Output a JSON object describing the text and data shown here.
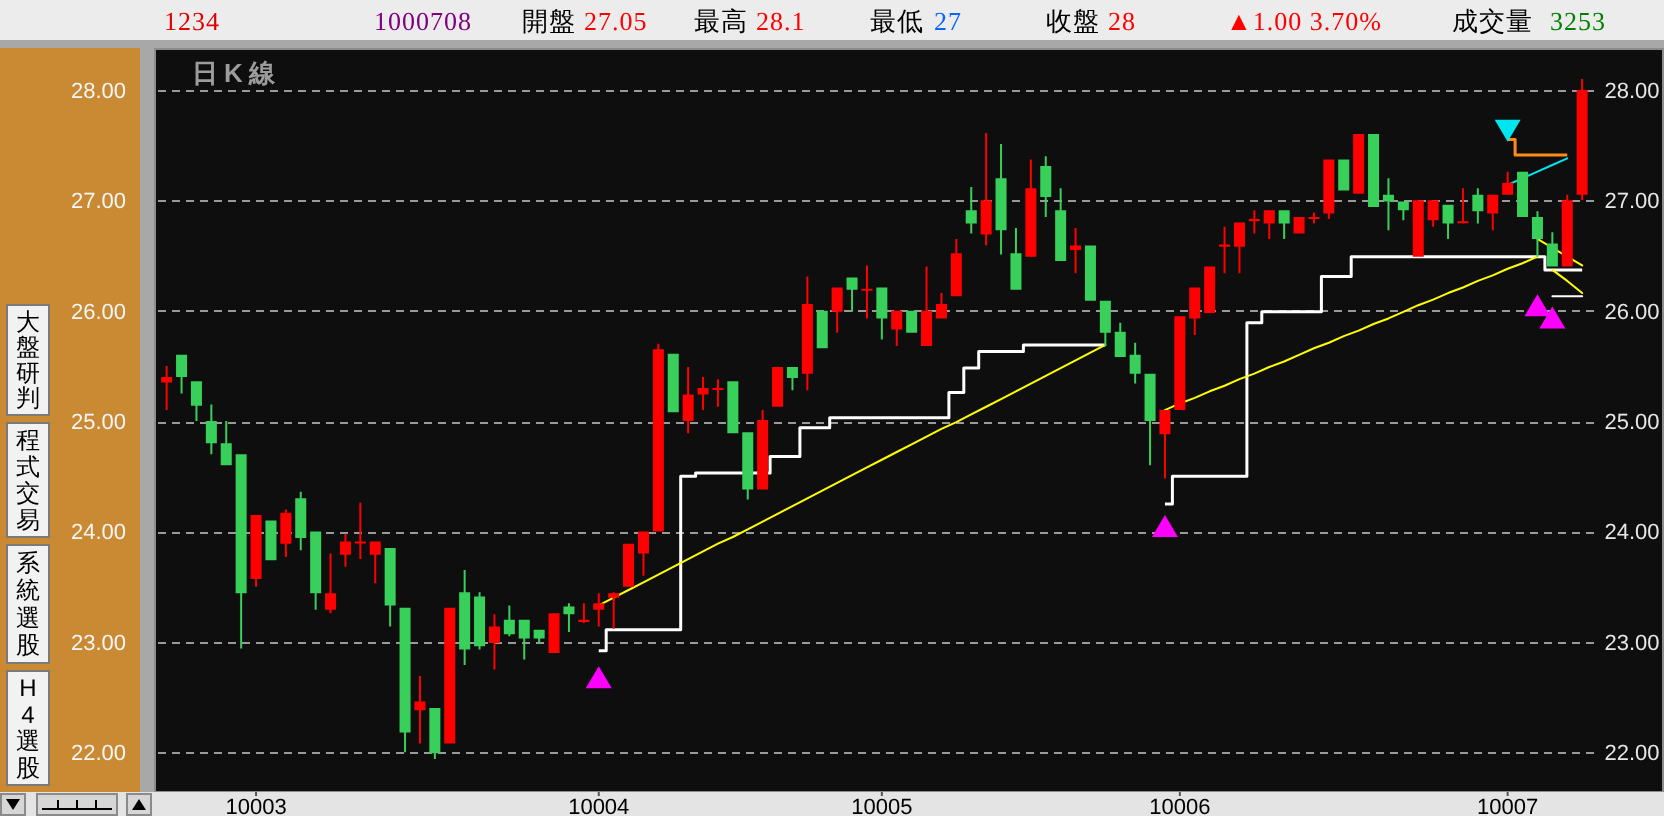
{
  "chart_data": {
    "type": "candlestick",
    "title": "日K線",
    "categories": [
      null,
      null,
      null,
      null,
      null,
      null,
      "10003",
      null,
      null,
      null,
      null,
      null,
      null,
      null,
      null,
      null,
      null,
      null,
      null,
      null,
      null,
      null,
      null,
      null,
      null,
      null,
      null,
      null,
      null,
      "10004",
      null,
      null,
      null,
      null,
      null,
      null,
      null,
      null,
      null,
      null,
      null,
      null,
      null,
      null,
      null,
      null,
      null,
      null,
      "10005",
      null,
      null,
      null,
      null,
      null,
      null,
      null,
      null,
      null,
      null,
      null,
      null,
      null,
      null,
      null,
      null,
      null,
      null,
      null,
      "10006",
      null,
      null,
      null,
      null,
      null,
      null,
      null,
      null,
      null,
      null,
      null,
      null,
      null,
      null,
      null,
      null,
      null,
      null,
      null,
      null,
      null,
      "10007",
      null,
      null,
      null,
      null,
      null
    ],
    "ohlc": [
      [
        25.35,
        25.5,
        25.1,
        25.4
      ],
      [
        25.6,
        25.6,
        25.25,
        25.4
      ],
      [
        25.36,
        25.36,
        25.0,
        25.14
      ],
      [
        25.0,
        25.15,
        24.7,
        24.8
      ],
      [
        24.8,
        25.0,
        24.6,
        24.6
      ],
      [
        24.7,
        24.7,
        22.94,
        23.44
      ],
      [
        23.57,
        24.15,
        23.5,
        24.15
      ],
      [
        24.1,
        24.1,
        23.74,
        23.74
      ],
      [
        23.89,
        24.2,
        23.77,
        24.17
      ],
      [
        24.3,
        24.36,
        23.83,
        23.94
      ],
      [
        24.0,
        24.0,
        23.29,
        23.44
      ],
      [
        23.29,
        23.8,
        23.26,
        23.44
      ],
      [
        23.79,
        23.98,
        23.68,
        23.91
      ],
      [
        23.9,
        24.26,
        23.75,
        23.91
      ],
      [
        23.79,
        23.91,
        23.53,
        23.91
      ],
      [
        23.85,
        23.85,
        23.14,
        23.33
      ],
      [
        23.31,
        23.31,
        22.0,
        22.18
      ],
      [
        22.38,
        22.69,
        22.08,
        22.46
      ],
      [
        22.4,
        22.4,
        21.94,
        21.99
      ],
      [
        22.08,
        23.31,
        22.08,
        23.31
      ],
      [
        23.45,
        23.65,
        22.79,
        22.93
      ],
      [
        23.41,
        23.45,
        22.93,
        22.96
      ],
      [
        22.99,
        23.25,
        22.75,
        23.14
      ],
      [
        23.2,
        23.33,
        23.05,
        23.07
      ],
      [
        23.2,
        23.2,
        22.84,
        23.03
      ],
      [
        23.11,
        23.11,
        22.99,
        23.03
      ],
      [
        22.9,
        23.26,
        22.9,
        23.26
      ],
      [
        23.32,
        23.35,
        23.09,
        23.25
      ],
      [
        23.18,
        23.35,
        23.17,
        23.2
      ],
      [
        23.29,
        23.44,
        23.14,
        23.35
      ],
      [
        23.4,
        23.45,
        23.12,
        23.44
      ],
      [
        23.5,
        23.89,
        23.5,
        23.89
      ],
      [
        23.8,
        24.0,
        23.6,
        24.0
      ],
      [
        24.0,
        25.7,
        24.0,
        25.65
      ],
      [
        25.61,
        25.61,
        25.08,
        25.08
      ],
      [
        25.0,
        25.49,
        24.89,
        25.24
      ],
      [
        25.24,
        25.4,
        25.1,
        25.3
      ],
      [
        25.29,
        25.38,
        25.13,
        25.3
      ],
      [
        25.36,
        25.36,
        24.89,
        24.89
      ],
      [
        24.9,
        24.9,
        24.29,
        24.38
      ],
      [
        24.38,
        25.1,
        24.38,
        25.01
      ],
      [
        25.13,
        25.49,
        25.13,
        25.49
      ],
      [
        25.49,
        25.49,
        25.28,
        25.39
      ],
      [
        25.43,
        26.31,
        25.28,
        26.06
      ],
      [
        26.0,
        26.0,
        25.66,
        25.66
      ],
      [
        25.99,
        26.21,
        25.8,
        26.21
      ],
      [
        26.3,
        26.3,
        25.99,
        26.19
      ],
      [
        26.18,
        26.41,
        25.93,
        26.2
      ],
      [
        26.21,
        26.21,
        25.74,
        25.93
      ],
      [
        25.83,
        26.0,
        25.68,
        26.0
      ],
      [
        26.0,
        26.0,
        25.8,
        25.8
      ],
      [
        25.68,
        26.4,
        25.68,
        26.0
      ],
      [
        25.93,
        26.16,
        25.93,
        26.06
      ],
      [
        26.13,
        26.65,
        26.13,
        26.52
      ],
      [
        26.91,
        27.12,
        26.7,
        26.79
      ],
      [
        26.69,
        27.61,
        26.59,
        27.0
      ],
      [
        27.2,
        27.51,
        26.51,
        26.73
      ],
      [
        26.52,
        26.75,
        26.19,
        26.19
      ],
      [
        26.49,
        27.37,
        26.49,
        27.11
      ],
      [
        27.31,
        27.4,
        26.85,
        27.03
      ],
      [
        26.91,
        27.11,
        26.45,
        26.45
      ],
      [
        26.55,
        26.75,
        26.34,
        26.59
      ],
      [
        26.59,
        26.59,
        26.09,
        26.09
      ],
      [
        26.09,
        26.09,
        25.68,
        25.8
      ],
      [
        25.81,
        25.89,
        25.58,
        25.58
      ],
      [
        25.6,
        25.71,
        25.34,
        25.43
      ],
      [
        25.43,
        25.43,
        24.6,
        25.0
      ],
      [
        24.88,
        25.1,
        24.48,
        25.1
      ],
      [
        25.1,
        25.95,
        25.1,
        25.95
      ],
      [
        25.93,
        26.21,
        25.78,
        26.21
      ],
      [
        25.98,
        26.4,
        25.98,
        26.4
      ],
      [
        26.58,
        26.76,
        26.34,
        26.6
      ],
      [
        26.58,
        26.8,
        26.34,
        26.8
      ],
      [
        26.81,
        26.91,
        26.7,
        26.83
      ],
      [
        26.79,
        26.91,
        26.65,
        26.91
      ],
      [
        26.91,
        26.91,
        26.65,
        26.79
      ],
      [
        26.7,
        26.85,
        26.7,
        26.85
      ],
      [
        26.84,
        26.89,
        26.79,
        26.85
      ],
      [
        26.88,
        27.37,
        26.83,
        27.37
      ],
      [
        27.37,
        27.37,
        27.09,
        27.09
      ],
      [
        27.06,
        27.6,
        27.06,
        27.6
      ],
      [
        27.6,
        27.6,
        26.94,
        26.94
      ],
      [
        27.05,
        27.2,
        26.73,
        26.99
      ],
      [
        26.99,
        26.99,
        26.82,
        26.91
      ],
      [
        26.49,
        27.0,
        26.49,
        27.0
      ],
      [
        26.82,
        27.0,
        26.76,
        27.0
      ],
      [
        26.96,
        26.96,
        26.65,
        26.79
      ],
      [
        26.8,
        27.11,
        26.79,
        26.81
      ],
      [
        27.05,
        27.11,
        26.79,
        26.9
      ],
      [
        26.88,
        27.05,
        26.73,
        27.05
      ],
      [
        27.05,
        27.26,
        27.05,
        27.16
      ],
      [
        27.26,
        27.26,
        26.85,
        26.85
      ],
      [
        26.85,
        26.9,
        26.49,
        26.65
      ],
      [
        26.61,
        26.71,
        26.4,
        26.4
      ],
      [
        26.4,
        27.05,
        26.4,
        27.0
      ],
      [
        27.05,
        28.1,
        27.0,
        28.0
      ]
    ],
    "colors": [
      "#ff0000",
      "#38cf5a",
      "#38cf5a",
      "#38cf5a",
      "#38cf5a",
      "#38cf5a",
      "#ff0000",
      "#38cf5a",
      "#ff0000",
      "#38cf5a",
      "#38cf5a",
      "#ff0000",
      "#ff0000",
      "#ff0000",
      "#ff0000",
      "#38cf5a",
      "#38cf5a",
      "#ff0000",
      "#38cf5a",
      "#ff0000",
      "#38cf5a",
      "#38cf5a",
      "#ff0000",
      "#38cf5a",
      "#38cf5a",
      "#38cf5a",
      "#ff0000",
      "#38cf5a",
      "#ff0000",
      "#ff0000",
      "#ff0000",
      "#ff0000",
      "#ff0000",
      "#ff0000",
      "#38cf5a",
      "#ff0000",
      "#ff0000",
      "#ff0000",
      "#38cf5a",
      "#38cf5a",
      "#ff0000",
      "#ff0000",
      "#38cf5a",
      "#ff0000",
      "#38cf5a",
      "#ff0000",
      "#38cf5a",
      "#ff0000",
      "#38cf5a",
      "#ff0000",
      "#38cf5a",
      "#ff0000",
      "#ff0000",
      "#ff0000",
      "#38cf5a",
      "#ff0000",
      "#38cf5a",
      "#38cf5a",
      "#ff0000",
      "#38cf5a",
      "#38cf5a",
      "#ff0000",
      "#38cf5a",
      "#38cf5a",
      "#38cf5a",
      "#38cf5a",
      "#38cf5a",
      "#ff0000",
      "#ff0000",
      "#ff0000",
      "#ff0000",
      "#ff0000",
      "#ff0000",
      "#ff0000",
      "#ff0000",
      "#38cf5a",
      "#ff0000",
      "#ff0000",
      "#ff0000",
      "#38cf5a",
      "#ff0000",
      "#38cf5a",
      "#38cf5a",
      "#38cf5a",
      "#ff0000",
      "#ff0000",
      "#38cf5a",
      "#ff0000",
      "#38cf5a",
      "#ff0000",
      "#ff0000",
      "#38cf5a",
      "#38cf5a",
      "#38cf5a",
      "#ff0000",
      "#ff0000"
    ],
    "series": [
      {
        "type": "step",
        "color": "#ffffff",
        "values": [
          null,
          null,
          null,
          null,
          null,
          null,
          null,
          null,
          null,
          null,
          null,
          null,
          null,
          null,
          null,
          null,
          null,
          null,
          null,
          null,
          null,
          null,
          null,
          null,
          null,
          null,
          null,
          null,
          null,
          22.92,
          23.11,
          23.11,
          23.11,
          23.11,
          23.11,
          24.5,
          24.53,
          24.53,
          24.53,
          24.53,
          24.53,
          24.68,
          24.68,
          24.94,
          24.94,
          25.03,
          25.03,
          25.03,
          25.03,
          25.03,
          25.03,
          25.03,
          25.03,
          25.26,
          25.48,
          25.63,
          25.63,
          25.63,
          25.69,
          25.69,
          25.69,
          25.69,
          25.69,
          25.69,
          null,
          null,
          null,
          24.25,
          24.5,
          24.5,
          24.5,
          24.5,
          24.5,
          25.89,
          25.99,
          25.99,
          25.99,
          25.99,
          26.31,
          26.31,
          26.49,
          26.49,
          26.49,
          26.49,
          26.49,
          26.49,
          26.49,
          26.49,
          26.49,
          26.49,
          26.49,
          26.49,
          26.49,
          26.37,
          26.37,
          26.37
        ]
      },
      {
        "type": "line",
        "color": "#ffff00",
        "values": [
          null,
          null,
          null,
          null,
          null,
          null,
          null,
          null,
          null,
          null,
          null,
          null,
          null,
          null,
          null,
          null,
          null,
          null,
          null,
          null,
          null,
          null,
          null,
          null,
          null,
          null,
          null,
          null,
          null,
          23.33,
          23.4,
          23.47,
          23.54,
          23.61,
          23.68,
          23.75,
          23.82,
          23.89,
          23.95,
          24.02,
          24.09,
          24.16,
          24.23,
          24.3,
          24.37,
          24.44,
          24.51,
          24.58,
          24.65,
          24.72,
          24.79,
          24.86,
          24.93,
          24.99,
          25.06,
          25.13,
          25.2,
          25.27,
          25.34,
          25.41,
          25.48,
          25.55,
          25.62,
          25.69,
          null,
          null,
          null,
          25.1,
          25.16,
          25.21,
          25.27,
          25.32,
          25.38,
          25.43,
          25.49,
          25.54,
          25.6,
          25.66,
          25.71,
          25.77,
          25.82,
          25.88,
          25.93,
          25.99,
          26.05,
          26.1,
          26.16,
          26.21,
          26.27,
          26.32,
          26.38,
          26.43,
          26.49,
          null,
          null,
          null
        ]
      },
      {
        "type": "line",
        "color": "#ffff00",
        "values": [
          null,
          null,
          null,
          null,
          null,
          null,
          null,
          null,
          null,
          null,
          null,
          null,
          null,
          null,
          null,
          null,
          null,
          null,
          null,
          null,
          null,
          null,
          null,
          null,
          null,
          null,
          null,
          null,
          null,
          null,
          null,
          null,
          null,
          null,
          null,
          null,
          null,
          null,
          null,
          null,
          null,
          null,
          null,
          null,
          null,
          null,
          null,
          null,
          null,
          null,
          null,
          null,
          null,
          null,
          null,
          null,
          null,
          null,
          null,
          null,
          null,
          null,
          null,
          null,
          null,
          null,
          null,
          null,
          null,
          null,
          null,
          null,
          null,
          null,
          null,
          null,
          null,
          null,
          null,
          null,
          null,
          null,
          null,
          null,
          null,
          null,
          null,
          null,
          null,
          null,
          null,
          null,
          26.65,
          26.57,
          26.49,
          26.41
        ]
      },
      {
        "type": "line",
        "color": "#ffff00",
        "values": [
          null,
          null,
          null,
          null,
          null,
          null,
          null,
          null,
          null,
          null,
          null,
          null,
          null,
          null,
          null,
          null,
          null,
          null,
          null,
          null,
          null,
          null,
          null,
          null,
          null,
          null,
          null,
          null,
          null,
          null,
          null,
          null,
          null,
          null,
          null,
          null,
          null,
          null,
          null,
          null,
          null,
          null,
          null,
          null,
          null,
          null,
          null,
          null,
          null,
          null,
          null,
          null,
          null,
          null,
          null,
          null,
          null,
          null,
          null,
          null,
          null,
          null,
          null,
          null,
          null,
          null,
          null,
          null,
          null,
          null,
          null,
          null,
          null,
          null,
          null,
          null,
          null,
          null,
          null,
          null,
          null,
          null,
          null,
          null,
          null,
          null,
          null,
          null,
          null,
          null,
          null,
          null,
          null,
          26.37,
          26.27,
          26.16
        ]
      },
      {
        "type": "line",
        "color": "#ffffff",
        "values": [
          null,
          null,
          null,
          null,
          null,
          null,
          null,
          null,
          null,
          null,
          null,
          null,
          null,
          null,
          null,
          null,
          null,
          null,
          null,
          null,
          null,
          null,
          null,
          null,
          null,
          null,
          null,
          null,
          null,
          null,
          null,
          null,
          null,
          null,
          null,
          null,
          null,
          null,
          null,
          null,
          null,
          null,
          null,
          null,
          null,
          null,
          null,
          null,
          null,
          null,
          null,
          null,
          null,
          null,
          null,
          null,
          null,
          null,
          null,
          null,
          null,
          null,
          null,
          null,
          null,
          null,
          null,
          null,
          null,
          null,
          null,
          null,
          null,
          null,
          null,
          null,
          null,
          null,
          null,
          null,
          null,
          null,
          null,
          null,
          null,
          null,
          null,
          null,
          null,
          null,
          null,
          null,
          null,
          26.13,
          26.13,
          26.13
        ]
      },
      {
        "type": "line",
        "color": "#00e5ee",
        "values": [
          null,
          null,
          null,
          null,
          null,
          null,
          null,
          null,
          null,
          null,
          null,
          null,
          null,
          null,
          null,
          null,
          null,
          null,
          null,
          null,
          null,
          null,
          null,
          null,
          null,
          null,
          null,
          null,
          null,
          null,
          null,
          null,
          null,
          null,
          null,
          null,
          null,
          null,
          null,
          null,
          null,
          null,
          null,
          null,
          null,
          null,
          null,
          null,
          null,
          null,
          null,
          null,
          null,
          null,
          null,
          null,
          null,
          null,
          null,
          null,
          null,
          null,
          null,
          null,
          null,
          null,
          null,
          null,
          null,
          null,
          null,
          null,
          null,
          null,
          null,
          null,
          null,
          null,
          null,
          null,
          null,
          null,
          null,
          null,
          null,
          null,
          null,
          null,
          null,
          null,
          27.14,
          27.2,
          27.26,
          27.32,
          27.38,
          null
        ]
      },
      {
        "type": "step",
        "color": "#ff8c1a",
        "values": [
          null,
          null,
          null,
          null,
          null,
          null,
          null,
          null,
          null,
          null,
          null,
          null,
          null,
          null,
          null,
          null,
          null,
          null,
          null,
          null,
          null,
          null,
          null,
          null,
          null,
          null,
          null,
          null,
          null,
          null,
          null,
          null,
          null,
          null,
          null,
          null,
          null,
          null,
          null,
          null,
          null,
          null,
          null,
          null,
          null,
          null,
          null,
          null,
          null,
          null,
          null,
          null,
          null,
          null,
          null,
          null,
          null,
          null,
          null,
          null,
          null,
          null,
          null,
          null,
          null,
          null,
          null,
          null,
          null,
          null,
          null,
          null,
          null,
          null,
          null,
          null,
          null,
          null,
          null,
          null,
          null,
          null,
          null,
          null,
          null,
          null,
          null,
          null,
          null,
          null,
          27.55,
          27.41,
          27.41,
          27.41,
          27.41,
          null
        ]
      },
      {
        "type": "scatter",
        "color": "#ff00ff",
        "marker": "triangle",
        "values": [
          null,
          null,
          null,
          null,
          null,
          null,
          null,
          null,
          null,
          null,
          null,
          null,
          null,
          null,
          null,
          null,
          null,
          null,
          null,
          null,
          null,
          null,
          null,
          null,
          null,
          null,
          null,
          null,
          null,
          22.67,
          null,
          null,
          null,
          null,
          null,
          null,
          null,
          null,
          null,
          null,
          null,
          null,
          null,
          null,
          null,
          null,
          null,
          null,
          null,
          null,
          null,
          null,
          null,
          null,
          null,
          null,
          null,
          null,
          null,
          null,
          null,
          null,
          null,
          null,
          null,
          null,
          null,
          24.04,
          null,
          null,
          null,
          null,
          null,
          null,
          null,
          null,
          null,
          null,
          null,
          null,
          null,
          null,
          null,
          null,
          null,
          null,
          null,
          null,
          null,
          null,
          null,
          null,
          26.04,
          25.93,
          null,
          null
        ]
      },
      {
        "type": "scatter",
        "color": "#00e5ee",
        "marker": "triangle_down",
        "values": [
          null,
          null,
          null,
          null,
          null,
          null,
          null,
          null,
          null,
          null,
          null,
          null,
          null,
          null,
          null,
          null,
          null,
          null,
          null,
          null,
          null,
          null,
          null,
          null,
          null,
          null,
          null,
          null,
          null,
          null,
          null,
          null,
          null,
          null,
          null,
          null,
          null,
          null,
          null,
          null,
          null,
          null,
          null,
          null,
          null,
          null,
          null,
          null,
          null,
          null,
          null,
          null,
          null,
          null,
          null,
          null,
          null,
          null,
          null,
          null,
          null,
          null,
          null,
          null,
          null,
          null,
          null,
          null,
          null,
          null,
          null,
          null,
          null,
          null,
          null,
          null,
          null,
          null,
          null,
          null,
          null,
          null,
          null,
          null,
          null,
          null,
          null,
          null,
          null,
          null,
          27.64,
          null,
          null,
          null,
          null,
          null
        ]
      }
    ],
    "ylim": [
      21.64,
      28.38
    ],
    "yticks": [
      {
        "value": 22,
        "label": "22.00"
      },
      {
        "value": 23,
        "label": "23.00"
      },
      {
        "value": 24,
        "label": "24.00"
      },
      {
        "value": 25,
        "label": "25.00"
      },
      {
        "value": 26,
        "label": "26.00"
      },
      {
        "value": 27,
        "label": "27.00"
      },
      {
        "value": 28,
        "label": "28.00"
      }
    ],
    "y2lim": [
      21.64,
      28.38
    ],
    "y2ticks": [
      {
        "value": 22,
        "label": "22.00"
      },
      {
        "value": 23,
        "label": "23.00"
      },
      {
        "value": 24,
        "label": "24.00"
      },
      {
        "value": 25,
        "label": "25.00"
      },
      {
        "value": 26,
        "label": "26.00"
      },
      {
        "value": 27,
        "label": "27.00"
      },
      {
        "value": 28,
        "label": "28.00"
      }
    ],
    "grid": "y",
    "annotations": [
      "1234",
      "1000708",
      "開盤",
      "27.05",
      "最高",
      "28.1",
      "最低",
      "27",
      "收盤",
      "28",
      "▲1.00 3.70%",
      "成交量",
      "3253",
      "大盤研判",
      "程式交易",
      "系統選股",
      "H4選股"
    ]
  }
}
